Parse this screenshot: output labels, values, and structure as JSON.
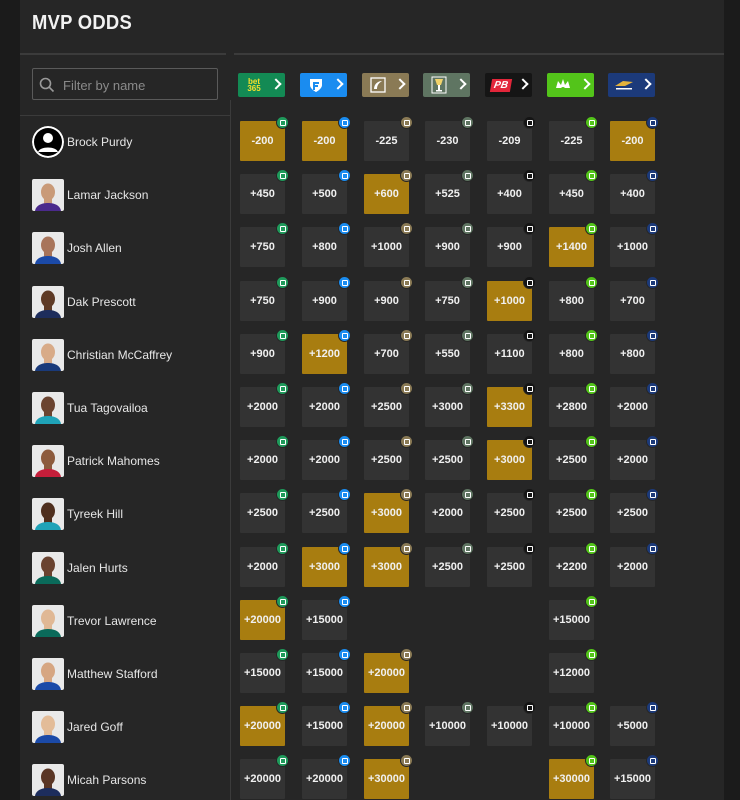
{
  "title": "MVP ODDS",
  "search": {
    "placeholder": "Filter by name",
    "value": ""
  },
  "books": [
    {
      "id": "bet365",
      "label": "bet365",
      "icon": "bet365-logo",
      "color": "#138a54"
    },
    {
      "id": "fanduel",
      "label": "",
      "icon": "fanduel-shield-icon",
      "color": "#1a8cf0"
    },
    {
      "id": "caesars",
      "label": "",
      "icon": "caesars-logo",
      "color": "#8a7a55"
    },
    {
      "id": "betrivers",
      "label": "",
      "icon": "cup-icon",
      "color": "#5f7562"
    },
    {
      "id": "pointsbet",
      "label": "PB",
      "icon": "pointsbet-logo",
      "color": "#151515"
    },
    {
      "id": "draftkings",
      "label": "",
      "icon": "draftkings-crown-icon",
      "color": "#53c41a"
    },
    {
      "id": "wynnbet",
      "label": "",
      "icon": "wynnbet-logo",
      "color": "#1c3a7a"
    }
  ],
  "badge_colors": [
    "#1f9a5b",
    "#1a8cf0",
    "#8a7a55",
    "#5f7562",
    "#151515",
    "#53c41a",
    "#1c3a7a"
  ],
  "rows": [
    {
      "name": "Brock Purdy",
      "avatar": "default-avatar",
      "odds": [
        "-200",
        "-200",
        "-225",
        "-230",
        "-209",
        "-225",
        "-200"
      ],
      "best": [
        0,
        1,
        6
      ]
    },
    {
      "name": "Lamar Jackson",
      "avatar": "player-photo",
      "odds": [
        "+450",
        "+500",
        "+600",
        "+525",
        "+400",
        "+450",
        "+400"
      ],
      "best": [
        2
      ]
    },
    {
      "name": "Josh Allen",
      "avatar": "player-photo",
      "odds": [
        "+750",
        "+800",
        "+1000",
        "+900",
        "+900",
        "+1400",
        "+1000"
      ],
      "best": [
        5
      ]
    },
    {
      "name": "Dak Prescott",
      "avatar": "player-photo",
      "odds": [
        "+750",
        "+900",
        "+900",
        "+750",
        "+1000",
        "+800",
        "+700"
      ],
      "best": [
        4
      ]
    },
    {
      "name": "Christian McCaffrey",
      "avatar": "player-photo",
      "odds": [
        "+900",
        "+1200",
        "+700",
        "+550",
        "+1100",
        "+800",
        "+800"
      ],
      "best": [
        1
      ]
    },
    {
      "name": "Tua Tagovailoa",
      "avatar": "player-photo",
      "odds": [
        "+2000",
        "+2000",
        "+2500",
        "+3000",
        "+3300",
        "+2800",
        "+2000"
      ],
      "best": [
        4
      ]
    },
    {
      "name": "Patrick Mahomes",
      "avatar": "player-photo",
      "odds": [
        "+2000",
        "+2000",
        "+2500",
        "+2500",
        "+3000",
        "+2500",
        "+2000"
      ],
      "best": [
        4
      ]
    },
    {
      "name": "Tyreek Hill",
      "avatar": "player-photo",
      "odds": [
        "+2500",
        "+2500",
        "+3000",
        "+2000",
        "+2500",
        "+2500",
        "+2500"
      ],
      "best": [
        2
      ]
    },
    {
      "name": "Jalen Hurts",
      "avatar": "player-photo",
      "odds": [
        "+2000",
        "+3000",
        "+3000",
        "+2500",
        "+2500",
        "+2200",
        "+2000"
      ],
      "best": [
        1,
        2
      ]
    },
    {
      "name": "Trevor Lawrence",
      "avatar": "player-photo",
      "odds": [
        "+20000",
        "+15000",
        "",
        "",
        "",
        "+15000",
        ""
      ],
      "best": [
        0
      ]
    },
    {
      "name": "Matthew Stafford",
      "avatar": "player-photo",
      "odds": [
        "+15000",
        "+15000",
        "+20000",
        "",
        "",
        "+12000",
        ""
      ],
      "best": [
        2
      ]
    },
    {
      "name": "Jared Goff",
      "avatar": "player-photo",
      "odds": [
        "+20000",
        "+15000",
        "+20000",
        "+10000",
        "+10000",
        "+10000",
        "+5000"
      ],
      "best": [
        0,
        2
      ]
    },
    {
      "name": "Micah Parsons",
      "avatar": "player-photo",
      "odds": [
        "+20000",
        "+20000",
        "+30000",
        "",
        "",
        "+30000",
        "+15000"
      ],
      "best": [
        2,
        5
      ]
    }
  ]
}
